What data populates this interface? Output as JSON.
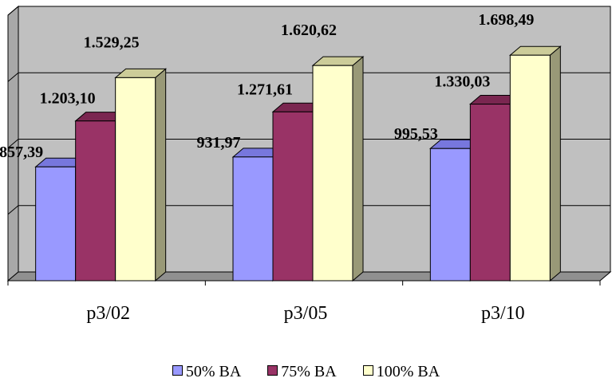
{
  "chart_data": {
    "type": "bar",
    "title": "",
    "xlabel": "",
    "ylabel": "",
    "categories": [
      "p3/02",
      "p3/05",
      "p3/10"
    ],
    "series": [
      {
        "name": "50% BA",
        "values": [
          857.39,
          931.97,
          995.53
        ],
        "labels": [
          "857,39",
          "931,97",
          "995,53"
        ],
        "color": "#9999ff",
        "side_color": "#6666cc",
        "top_color": "#7777dd"
      },
      {
        "name": "75% BA",
        "values": [
          1203.1,
          1271.61,
          1330.03
        ],
        "labels": [
          "1.203,10",
          "1.271,61",
          "1.330,03"
        ],
        "color": "#993366",
        "side_color": "#66223f",
        "top_color": "#7a2650"
      },
      {
        "name": "100% BA",
        "values": [
          1529.25,
          1620.62,
          1698.49
        ],
        "labels": [
          "1.529,25",
          "1.620,62",
          "1.698,49"
        ],
        "color": "#ffffcc",
        "side_color": "#999977",
        "top_color": "#cccc99"
      }
    ],
    "ylim": [
      0,
      2000
    ],
    "yticks": [
      0,
      500,
      1000,
      1500,
      2000
    ],
    "grid": true,
    "show_y_tick_labels": false,
    "three_d": true,
    "legend_position": "bottom",
    "wall_color": "#c0c0c0"
  }
}
